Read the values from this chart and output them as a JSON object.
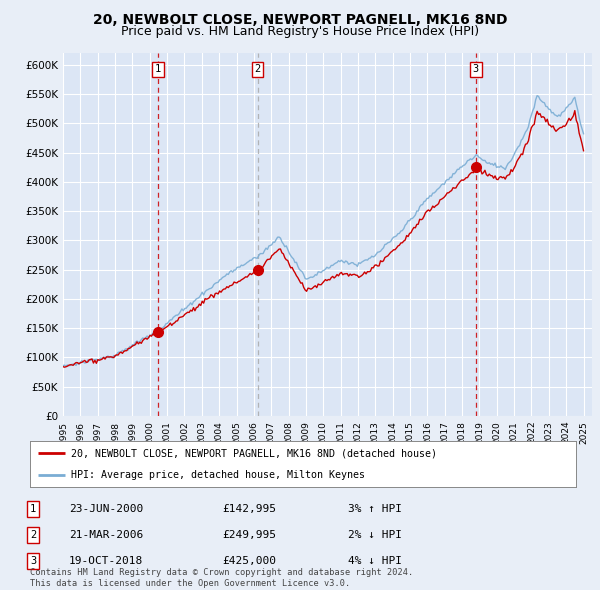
{
  "title": "20, NEWBOLT CLOSE, NEWPORT PAGNELL, MK16 8ND",
  "subtitle": "Price paid vs. HM Land Registry's House Price Index (HPI)",
  "ylim": [
    0,
    620000
  ],
  "yticks": [
    0,
    50000,
    100000,
    150000,
    200000,
    250000,
    300000,
    350000,
    400000,
    450000,
    500000,
    550000,
    600000
  ],
  "ytick_labels": [
    "£0",
    "£50K",
    "£100K",
    "£150K",
    "£200K",
    "£250K",
    "£300K",
    "£350K",
    "£400K",
    "£450K",
    "£500K",
    "£550K",
    "£600K"
  ],
  "xlim_start": 1995.0,
  "xlim_end": 2025.5,
  "background_color": "#e8eef7",
  "plot_bg_color": "#dce6f5",
  "grid_color": "#ffffff",
  "sale_color": "#cc0000",
  "hpi_color": "#7aadd4",
  "dashed_color_1": "#cc0000",
  "dashed_color_2": "#aaaaaa",
  "dashed_color_3": "#cc0000",
  "marker_dates": [
    2000.47,
    2006.22,
    2018.8
  ],
  "marker_prices": [
    142995,
    249995,
    425000
  ],
  "marker_labels": [
    "1",
    "2",
    "3"
  ],
  "legend_sale_label": "20, NEWBOLT CLOSE, NEWPORT PAGNELL, MK16 8ND (detached house)",
  "legend_hpi_label": "HPI: Average price, detached house, Milton Keynes",
  "table_rows": [
    {
      "num": "1",
      "date": "23-JUN-2000",
      "price": "£142,995",
      "change": "3% ↑ HPI"
    },
    {
      "num": "2",
      "date": "21-MAR-2006",
      "price": "£249,995",
      "change": "2% ↓ HPI"
    },
    {
      "num": "3",
      "date": "19-OCT-2018",
      "price": "£425,000",
      "change": "4% ↓ HPI"
    }
  ],
  "footer": "Contains HM Land Registry data © Crown copyright and database right 2024.\nThis data is licensed under the Open Government Licence v3.0.",
  "title_fontsize": 10,
  "subtitle_fontsize": 9
}
